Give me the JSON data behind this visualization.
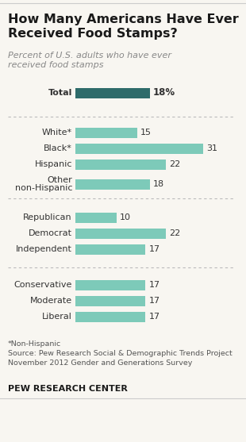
{
  "title": "How Many Americans Have Ever\nReceived Food Stamps?",
  "subtitle": "Percent of U.S. adults who have ever\nreceived food stamps",
  "categories": [
    "Total",
    "White*",
    "Black*",
    "Hispanic",
    "Other\nnon-Hispanic",
    "Republican",
    "Democrat",
    "Independent",
    "Conservative",
    "Moderate",
    "Liberal"
  ],
  "values": [
    18,
    15,
    31,
    22,
    18,
    10,
    22,
    17,
    17,
    17,
    17
  ],
  "total_color": "#2e6b6a",
  "bar_color": "#7dcab9",
  "background_color": "#f8f6f1",
  "footnote_line1": "*Non-Hispanic",
  "footnote_line2": "Source: Pew Research Social & Demographic Trends Project",
  "footnote_line3": "November 2012 Gender and Generations Survey",
  "footer": "PEW RESEARCH CENTER",
  "xlim": [
    0,
    35
  ]
}
